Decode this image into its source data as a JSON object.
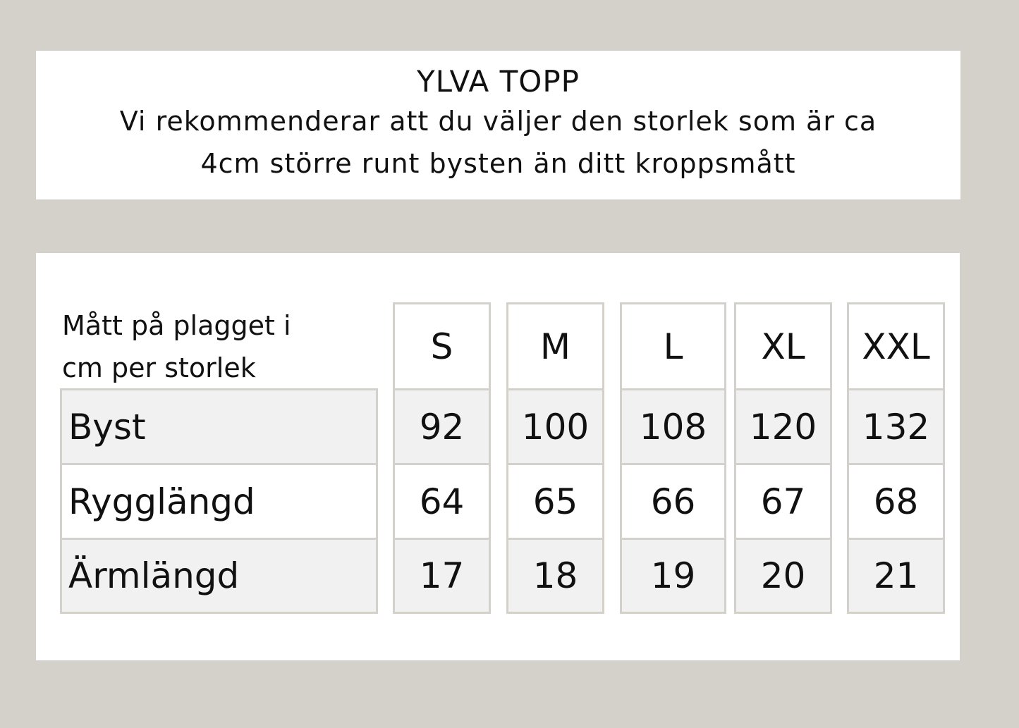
{
  "header": {
    "title": "YLVA TOPP",
    "subtitle_line1": "Vi rekommenderar att du väljer den storlek som är ca",
    "subtitle_line2": "4cm större runt bysten än ditt kroppsmått"
  },
  "table": {
    "caption_line1": "Mått på plagget i",
    "caption_line2": "cm per storlek",
    "sizes": [
      "S",
      "M",
      "L",
      "XL",
      "XXL"
    ],
    "rows": [
      {
        "label": "Byst",
        "values": [
          "92",
          "100",
          "108",
          "120",
          "132"
        ]
      },
      {
        "label": "Rygglängd",
        "values": [
          "64",
          "65",
          "66",
          "67",
          "68"
        ]
      },
      {
        "label": "Ärmlängd",
        "values": [
          "17",
          "18",
          "19",
          "20",
          "21"
        ]
      }
    ]
  },
  "colors": {
    "background": "#d4d1ca",
    "shaded_row": "#f1f1f1",
    "border": "#d4d1ca"
  }
}
